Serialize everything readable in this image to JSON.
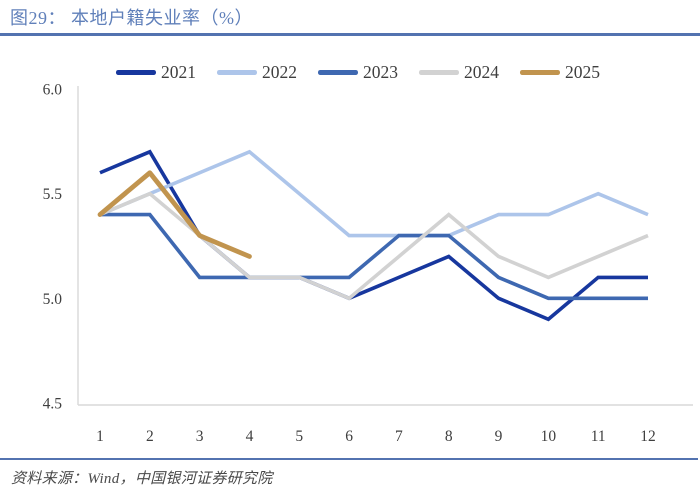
{
  "header": {
    "title": "图29：  本地户籍失业率（%）"
  },
  "footer": {
    "source": "资料来源：Wind，中国银河证券研究院"
  },
  "colors": {
    "title": "#6080ba",
    "rule": "#5373b0",
    "axis": "#d9d9d9",
    "tick_text": "#3f3f3f"
  },
  "chart_data": {
    "type": "line",
    "title": "本地户籍失业率（%）",
    "x": [
      1,
      2,
      3,
      4,
      5,
      6,
      7,
      8,
      9,
      10,
      11,
      12
    ],
    "xticklabels": [
      "1",
      "2",
      "3",
      "4",
      "5",
      "6",
      "7",
      "8",
      "9",
      "10",
      "11",
      "12"
    ],
    "yticks": [
      4.5,
      5.0,
      5.5,
      6.0
    ],
    "yticklabels": [
      "4.5",
      "5.0",
      "5.5",
      "6.0"
    ],
    "ylim": [
      4.5,
      6.0
    ],
    "xlabel": "",
    "ylabel": "",
    "grid": false,
    "legend_position": "top",
    "series": [
      {
        "name": "2021",
        "color": "#17379e",
        "values": [
          5.6,
          5.7,
          5.3,
          5.1,
          5.1,
          5.0,
          5.1,
          5.2,
          5.0,
          4.9,
          5.1,
          5.1
        ]
      },
      {
        "name": "2022",
        "color": "#adc5ea",
        "values": [
          5.4,
          5.5,
          5.6,
          5.7,
          5.5,
          5.3,
          5.3,
          5.3,
          5.4,
          5.4,
          5.5,
          5.4
        ]
      },
      {
        "name": "2023",
        "color": "#3e68b1",
        "values": [
          5.4,
          5.4,
          5.1,
          5.1,
          5.1,
          5.1,
          5.3,
          5.3,
          5.1,
          5.0,
          5.0,
          5.0
        ]
      },
      {
        "name": "2024",
        "color": "#d2d2d2",
        "values": [
          5.4,
          5.5,
          5.3,
          5.1,
          5.1,
          5.0,
          5.2,
          5.4,
          5.2,
          5.1,
          5.2,
          5.3
        ]
      },
      {
        "name": "2025",
        "color": "#c1944e",
        "values": [
          5.4,
          5.6,
          5.3,
          5.2
        ]
      }
    ]
  }
}
